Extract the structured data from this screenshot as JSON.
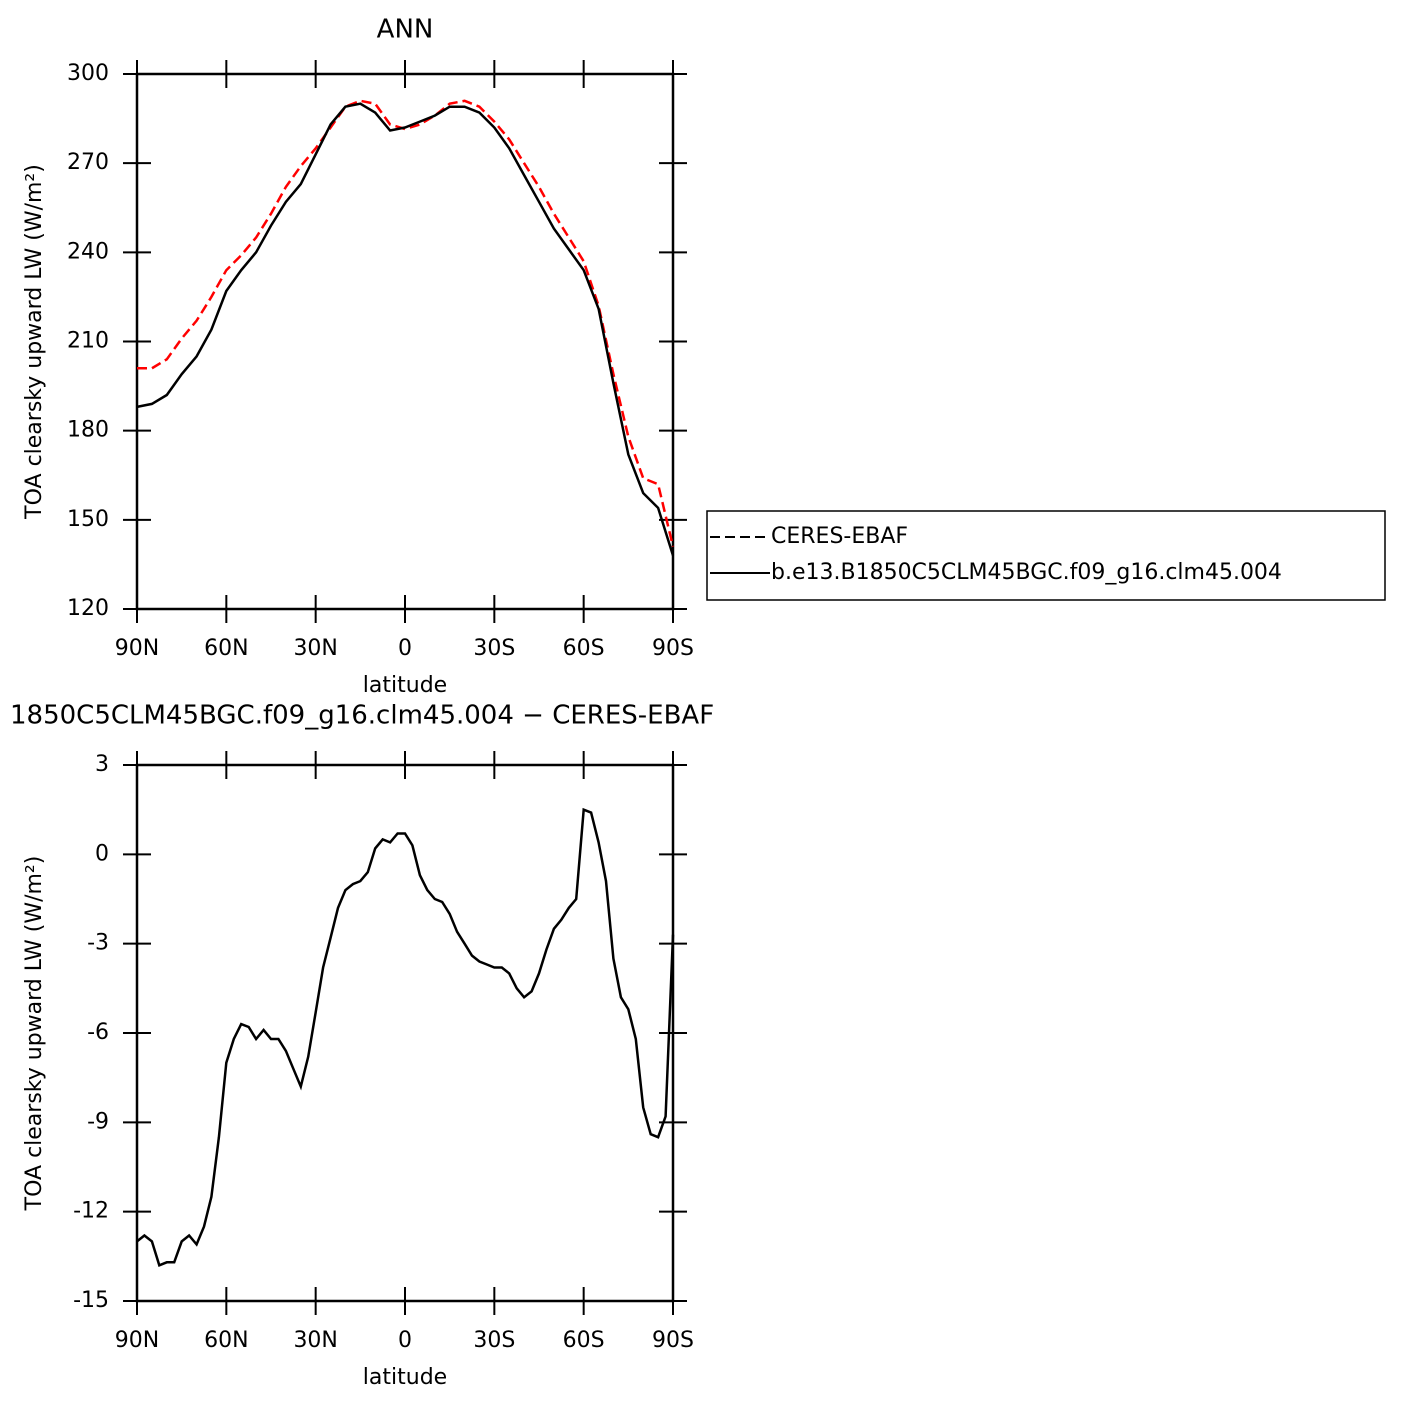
{
  "chart_data": [
    {
      "type": "line",
      "title": "ANN",
      "xlabel": "latitude",
      "ylabel": "TOA clearsky upward LW (W/m²)",
      "x": [
        90,
        85,
        80,
        75,
        70,
        65,
        60,
        55,
        50,
        45,
        40,
        35,
        30,
        25,
        20,
        15,
        10,
        5,
        0,
        -5,
        -10,
        -15,
        -20,
        -25,
        -30,
        -35,
        -40,
        -45,
        -50,
        -55,
        -60,
        -65,
        -70,
        -75,
        -80,
        -85,
        -90
      ],
      "xlim": [
        90,
        -90
      ],
      "xticks": [
        {
          "value": 90,
          "label": "90N"
        },
        {
          "value": 60,
          "label": "60N"
        },
        {
          "value": 30,
          "label": "30N"
        },
        0,
        {
          "value": -30,
          "label": "30S"
        },
        {
          "value": -60,
          "label": "60S"
        },
        {
          "value": -90,
          "label": "90S"
        }
      ],
      "ylim": [
        120,
        300
      ],
      "yticks": [
        120,
        150,
        180,
        210,
        240,
        270,
        300
      ],
      "legend": "right",
      "series": [
        {
          "name": "CERES-EBAF",
          "color": "#ff0000",
          "linestyle": "dashed",
          "values": [
            201,
            201,
            204,
            211,
            217,
            225,
            234,
            239,
            245,
            253,
            262,
            269,
            275,
            282,
            289,
            291,
            290,
            283,
            281.5,
            283,
            286,
            290,
            291,
            289,
            284,
            278,
            270,
            262,
            253,
            245,
            237,
            222,
            199,
            178,
            164,
            162,
            141
          ]
        },
        {
          "name": "b.e13.B1850C5CLM45BGC.f09_g16.clm45.004",
          "color": "#000000",
          "linestyle": "solid",
          "values": [
            188,
            189,
            192,
            199,
            205,
            214,
            227,
            234,
            240,
            249,
            257,
            263,
            273,
            283,
            289,
            290,
            287,
            281,
            282,
            284,
            286,
            289,
            289,
            287,
            282,
            275,
            266,
            257,
            248,
            241,
            234,
            221,
            196,
            172,
            159,
            154,
            138
          ]
        }
      ]
    },
    {
      "type": "line",
      "title": "1850C5CLM45BGC.f09_g16.clm45.004 − CERES-EBAF",
      "xlabel": "latitude",
      "ylabel": "TOA clearsky upward LW (W/m²)",
      "x": [
        90,
        87.5,
        85,
        82.5,
        80,
        77.5,
        75,
        72.5,
        70,
        67.5,
        65,
        62.5,
        60,
        57.5,
        55,
        52.5,
        50,
        47.5,
        45,
        42.5,
        40,
        37.5,
        35,
        32.5,
        30,
        27.5,
        25,
        22.5,
        20,
        17.5,
        15,
        12.5,
        10,
        7.5,
        5,
        2.5,
        0,
        -2.5,
        -5,
        -7.5,
        -10,
        -12.5,
        -15,
        -17.5,
        -20,
        -22.5,
        -25,
        -27.5,
        -30,
        -32.5,
        -35,
        -37.5,
        -40,
        -42.5,
        -45,
        -47.5,
        -50,
        -52.5,
        -55,
        -57.5,
        -60,
        -62.5,
        -65,
        -67.5,
        -70,
        -72.5,
        -75,
        -77.5,
        -80,
        -82.5,
        -85,
        -87.5,
        -90
      ],
      "xlim": [
        90,
        -90
      ],
      "xticks": [
        {
          "value": 90,
          "label": "90N"
        },
        {
          "value": 60,
          "label": "60N"
        },
        {
          "value": 30,
          "label": "30N"
        },
        0,
        {
          "value": -30,
          "label": "30S"
        },
        {
          "value": -60,
          "label": "60S"
        },
        {
          "value": -90,
          "label": "90S"
        }
      ],
      "ylim": [
        -15,
        3
      ],
      "yticks": [
        -15,
        -12,
        -9,
        -6,
        -3,
        0,
        3
      ],
      "color": "#000000",
      "values": [
        -13.0,
        -12.8,
        -13.0,
        -13.8,
        -13.7,
        -13.7,
        -13.0,
        -12.8,
        -13.1,
        -12.5,
        -11.5,
        -9.5,
        -7.0,
        -6.2,
        -5.7,
        -5.8,
        -6.2,
        -5.9,
        -6.2,
        -6.2,
        -6.6,
        -7.2,
        -7.8,
        -6.8,
        -5.3,
        -3.8,
        -2.8,
        -1.8,
        -1.2,
        -1.0,
        -0.9,
        -0.6,
        0.2,
        0.5,
        0.4,
        0.7,
        0.7,
        0.3,
        -0.7,
        -1.2,
        -1.5,
        -1.6,
        -2.0,
        -2.6,
        -3.0,
        -3.4,
        -3.6,
        -3.7,
        -3.8,
        -3.8,
        -4.0,
        -4.5,
        -4.8,
        -4.6,
        -4.0,
        -3.2,
        -2.5,
        -2.2,
        -1.8,
        -1.5,
        1.5,
        1.4,
        0.4,
        -0.9,
        -3.5,
        -4.8,
        -5.2,
        -6.2,
        -8.5,
        -9.4,
        -9.5,
        -8.8,
        -2.7
      ]
    }
  ]
}
